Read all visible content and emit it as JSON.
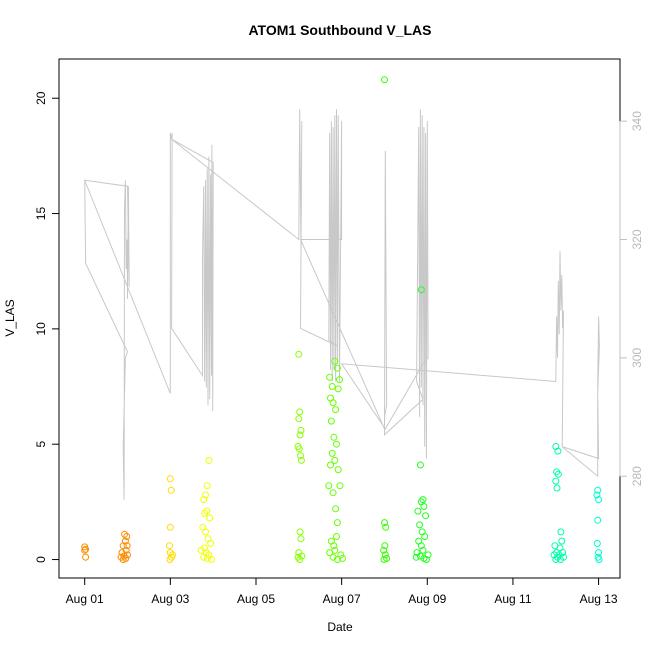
{
  "chart_data": {
    "type": "scatter",
    "title": "ATOM1 Southbound V_LAS",
    "xlabel": "Date",
    "ylabel": "V_LAS",
    "x_unit": "days since Aug 01",
    "xlim": [
      -0.6,
      12.5
    ],
    "ylim": [
      -0.8,
      21.7
    ],
    "x_ticks": [
      {
        "value": 0,
        "label": "Aug 01"
      },
      {
        "value": 2,
        "label": "Aug 03"
      },
      {
        "value": 4,
        "label": "Aug 05"
      },
      {
        "value": 6,
        "label": "Aug 07"
      },
      {
        "value": 8,
        "label": "Aug 09"
      },
      {
        "value": 10,
        "label": "Aug 11"
      },
      {
        "value": 12,
        "label": "Aug 13"
      }
    ],
    "y_ticks": [
      0,
      5,
      10,
      15,
      20
    ],
    "y2": {
      "ylim": [
        262.8,
        350.5
      ],
      "ticks": [
        280,
        300,
        320,
        340
      ],
      "color": "#c0c0c0"
    },
    "points_color_by": "date (orange to green to aqua)",
    "points": [
      {
        "x": 0.0,
        "y": 0.55,
        "c": "#ff8c00"
      },
      {
        "x": 0.0,
        "y": 0.4,
        "c": "#ff8c00"
      },
      {
        "x": 0.02,
        "y": 0.1,
        "c": "#ff8c00"
      },
      {
        "x": 0.02,
        "y": 0.45,
        "c": "#ff8c00"
      },
      {
        "x": 0.85,
        "y": 0.1,
        "c": "#ff8c00"
      },
      {
        "x": 0.87,
        "y": 0.3,
        "c": "#ff8c00"
      },
      {
        "x": 0.9,
        "y": 0.6,
        "c": "#ff8c00"
      },
      {
        "x": 0.92,
        "y": 0.15,
        "c": "#ff8c00"
      },
      {
        "x": 0.93,
        "y": 1.1,
        "c": "#ff8c00"
      },
      {
        "x": 0.95,
        "y": 0.8,
        "c": "#ff8c00"
      },
      {
        "x": 0.97,
        "y": 0.4,
        "c": "#ff8c00"
      },
      {
        "x": 0.98,
        "y": 1.0,
        "c": "#ff8c00"
      },
      {
        "x": 1.0,
        "y": 0.2,
        "c": "#ff8c00"
      },
      {
        "x": 0.96,
        "y": 0.05,
        "c": "#ff8c00"
      },
      {
        "x": 0.9,
        "y": 0.0,
        "c": "#ff8c00"
      },
      {
        "x": 0.99,
        "y": 0.6,
        "c": "#ff8c00"
      },
      {
        "x": 2.0,
        "y": 3.5,
        "c": "#ffdd00"
      },
      {
        "x": 2.02,
        "y": 3.0,
        "c": "#ffdd00"
      },
      {
        "x": 2.0,
        "y": 1.4,
        "c": "#ffdd00"
      },
      {
        "x": 1.98,
        "y": 0.6,
        "c": "#ffdd00"
      },
      {
        "x": 2.0,
        "y": 0.3,
        "c": "#ffdd00"
      },
      {
        "x": 2.03,
        "y": 0.1,
        "c": "#ffdd00"
      },
      {
        "x": 1.99,
        "y": 0.0,
        "c": "#ffdd00"
      },
      {
        "x": 2.05,
        "y": 0.2,
        "c": "#ffdd00"
      },
      {
        "x": 2.78,
        "y": 2.6,
        "c": "#f0ff00"
      },
      {
        "x": 2.82,
        "y": 2.8,
        "c": "#f0ff00"
      },
      {
        "x": 2.86,
        "y": 3.2,
        "c": "#f0ff00"
      },
      {
        "x": 2.9,
        "y": 4.3,
        "c": "#f0ff00"
      },
      {
        "x": 2.8,
        "y": 2.0,
        "c": "#f0ff00"
      },
      {
        "x": 2.85,
        "y": 2.1,
        "c": "#f0ff00"
      },
      {
        "x": 2.92,
        "y": 1.8,
        "c": "#f0ff00"
      },
      {
        "x": 2.76,
        "y": 1.4,
        "c": "#f0ff00"
      },
      {
        "x": 2.82,
        "y": 1.2,
        "c": "#f0ff00"
      },
      {
        "x": 2.88,
        "y": 0.9,
        "c": "#f0ff00"
      },
      {
        "x": 2.94,
        "y": 0.7,
        "c": "#f0ff00"
      },
      {
        "x": 2.8,
        "y": 0.5,
        "c": "#f0ff00"
      },
      {
        "x": 2.84,
        "y": 0.3,
        "c": "#f0ff00"
      },
      {
        "x": 2.9,
        "y": 0.2,
        "c": "#f0ff00"
      },
      {
        "x": 2.78,
        "y": 0.1,
        "c": "#f0ff00"
      },
      {
        "x": 2.86,
        "y": 0.05,
        "c": "#f0ff00"
      },
      {
        "x": 2.96,
        "y": 0.0,
        "c": "#f0ff00"
      },
      {
        "x": 2.72,
        "y": 0.4,
        "c": "#f0ff00"
      },
      {
        "x": 5.0,
        "y": 8.9,
        "c": "#88ff00"
      },
      {
        "x": 5.02,
        "y": 6.4,
        "c": "#88ff00"
      },
      {
        "x": 5.0,
        "y": 6.1,
        "c": "#88ff00"
      },
      {
        "x": 5.05,
        "y": 5.6,
        "c": "#88ff00"
      },
      {
        "x": 5.03,
        "y": 5.4,
        "c": "#88ff00"
      },
      {
        "x": 4.98,
        "y": 4.9,
        "c": "#88ff00"
      },
      {
        "x": 5.01,
        "y": 4.8,
        "c": "#88ff00"
      },
      {
        "x": 5.04,
        "y": 4.5,
        "c": "#88ff00"
      },
      {
        "x": 5.06,
        "y": 4.3,
        "c": "#88ff00"
      },
      {
        "x": 5.03,
        "y": 1.2,
        "c": "#88ff00"
      },
      {
        "x": 5.05,
        "y": 0.9,
        "c": "#88ff00"
      },
      {
        "x": 5.0,
        "y": 0.3,
        "c": "#88ff00"
      },
      {
        "x": 4.98,
        "y": 0.1,
        "c": "#88ff00"
      },
      {
        "x": 5.02,
        "y": 0.0,
        "c": "#88ff00"
      },
      {
        "x": 5.07,
        "y": 0.15,
        "c": "#88ff00"
      },
      {
        "x": 5.72,
        "y": 7.9,
        "c": "#66ff00"
      },
      {
        "x": 5.78,
        "y": 7.5,
        "c": "#66ff00"
      },
      {
        "x": 5.84,
        "y": 8.6,
        "c": "#66ff00"
      },
      {
        "x": 5.9,
        "y": 8.3,
        "c": "#66ff00"
      },
      {
        "x": 5.95,
        "y": 7.8,
        "c": "#66ff00"
      },
      {
        "x": 5.74,
        "y": 7.0,
        "c": "#66ff00"
      },
      {
        "x": 5.8,
        "y": 6.8,
        "c": "#66ff00"
      },
      {
        "x": 5.86,
        "y": 6.5,
        "c": "#66ff00"
      },
      {
        "x": 5.92,
        "y": 7.4,
        "c": "#66ff00"
      },
      {
        "x": 5.76,
        "y": 6.0,
        "c": "#66ff00"
      },
      {
        "x": 5.82,
        "y": 5.3,
        "c": "#66ff00"
      },
      {
        "x": 5.88,
        "y": 5.0,
        "c": "#66ff00"
      },
      {
        "x": 5.78,
        "y": 4.6,
        "c": "#66ff00"
      },
      {
        "x": 5.84,
        "y": 4.3,
        "c": "#66ff00"
      },
      {
        "x": 5.92,
        "y": 3.9,
        "c": "#66ff00"
      },
      {
        "x": 5.74,
        "y": 4.1,
        "c": "#66ff00"
      },
      {
        "x": 5.7,
        "y": 3.2,
        "c": "#66ff00"
      },
      {
        "x": 5.8,
        "y": 2.9,
        "c": "#66ff00"
      },
      {
        "x": 5.96,
        "y": 3.2,
        "c": "#66ff00"
      },
      {
        "x": 5.86,
        "y": 2.2,
        "c": "#66ff00"
      },
      {
        "x": 5.9,
        "y": 1.6,
        "c": "#66ff00"
      },
      {
        "x": 5.76,
        "y": 0.8,
        "c": "#66ff00"
      },
      {
        "x": 5.82,
        "y": 0.6,
        "c": "#66ff00"
      },
      {
        "x": 5.88,
        "y": 1.0,
        "c": "#66ff00"
      },
      {
        "x": 5.72,
        "y": 0.3,
        "c": "#66ff00"
      },
      {
        "x": 5.8,
        "y": 0.1,
        "c": "#66ff00"
      },
      {
        "x": 5.9,
        "y": 0.0,
        "c": "#66ff00"
      },
      {
        "x": 5.98,
        "y": 0.2,
        "c": "#66ff00"
      },
      {
        "x": 6.02,
        "y": 0.05,
        "c": "#66ff00"
      },
      {
        "x": 5.84,
        "y": 0.4,
        "c": "#66ff00"
      },
      {
        "x": 7.0,
        "y": 20.8,
        "c": "#33ff00"
      },
      {
        "x": 7.0,
        "y": 1.6,
        "c": "#33ff00"
      },
      {
        "x": 7.03,
        "y": 1.4,
        "c": "#33ff00"
      },
      {
        "x": 7.01,
        "y": 0.6,
        "c": "#33ff00"
      },
      {
        "x": 6.98,
        "y": 0.4,
        "c": "#33ff00"
      },
      {
        "x": 7.02,
        "y": 0.2,
        "c": "#33ff00"
      },
      {
        "x": 7.05,
        "y": 0.05,
        "c": "#33ff00"
      },
      {
        "x": 6.99,
        "y": 0.0,
        "c": "#33ff00"
      },
      {
        "x": 7.86,
        "y": 11.7,
        "c": "#22ff22"
      },
      {
        "x": 7.84,
        "y": 4.1,
        "c": "#22ff22"
      },
      {
        "x": 7.9,
        "y": 2.6,
        "c": "#22ff22"
      },
      {
        "x": 7.86,
        "y": 2.5,
        "c": "#22ff22"
      },
      {
        "x": 7.92,
        "y": 2.3,
        "c": "#22ff22"
      },
      {
        "x": 7.78,
        "y": 2.1,
        "c": "#22ff22"
      },
      {
        "x": 7.96,
        "y": 1.9,
        "c": "#22ff22"
      },
      {
        "x": 7.82,
        "y": 1.5,
        "c": "#22ff22"
      },
      {
        "x": 7.88,
        "y": 1.2,
        "c": "#22ff22"
      },
      {
        "x": 7.94,
        "y": 1.0,
        "c": "#22ff22"
      },
      {
        "x": 7.8,
        "y": 0.8,
        "c": "#22ff22"
      },
      {
        "x": 7.86,
        "y": 0.6,
        "c": "#22ff22"
      },
      {
        "x": 7.9,
        "y": 0.4,
        "c": "#22ff22"
      },
      {
        "x": 7.76,
        "y": 0.3,
        "c": "#22ff22"
      },
      {
        "x": 7.84,
        "y": 0.15,
        "c": "#22ff22"
      },
      {
        "x": 7.92,
        "y": 0.05,
        "c": "#22ff22"
      },
      {
        "x": 7.98,
        "y": 0.0,
        "c": "#22ff22"
      },
      {
        "x": 7.74,
        "y": 0.1,
        "c": "#22ff22"
      },
      {
        "x": 8.02,
        "y": 0.2,
        "c": "#22ff22"
      },
      {
        "x": 11.0,
        "y": 4.9,
        "c": "#00ffaa"
      },
      {
        "x": 11.05,
        "y": 4.7,
        "c": "#00ffaa"
      },
      {
        "x": 11.02,
        "y": 3.8,
        "c": "#00ffaa"
      },
      {
        "x": 11.0,
        "y": 3.4,
        "c": "#00ffaa"
      },
      {
        "x": 11.03,
        "y": 3.1,
        "c": "#00ffaa"
      },
      {
        "x": 11.06,
        "y": 3.7,
        "c": "#00ffaa"
      },
      {
        "x": 10.98,
        "y": 0.6,
        "c": "#00ffaa"
      },
      {
        "x": 11.02,
        "y": 0.3,
        "c": "#00ffaa"
      },
      {
        "x": 11.04,
        "y": 0.1,
        "c": "#00ffaa"
      },
      {
        "x": 11.0,
        "y": 0.0,
        "c": "#00ffaa"
      },
      {
        "x": 10.96,
        "y": 0.2,
        "c": "#00ffaa"
      },
      {
        "x": 11.12,
        "y": 1.2,
        "c": "#00ffaa"
      },
      {
        "x": 11.14,
        "y": 0.8,
        "c": "#00ffaa"
      },
      {
        "x": 11.1,
        "y": 0.5,
        "c": "#00ffaa"
      },
      {
        "x": 11.16,
        "y": 0.3,
        "c": "#00ffaa"
      },
      {
        "x": 11.18,
        "y": 0.1,
        "c": "#00ffaa"
      },
      {
        "x": 11.11,
        "y": 0.0,
        "c": "#00ffaa"
      },
      {
        "x": 11.08,
        "y": 0.2,
        "c": "#00ffaa"
      },
      {
        "x": 11.98,
        "y": 3.0,
        "c": "#00ffcc"
      },
      {
        "x": 11.96,
        "y": 2.8,
        "c": "#00ffcc"
      },
      {
        "x": 12.0,
        "y": 2.6,
        "c": "#00ffcc"
      },
      {
        "x": 11.98,
        "y": 1.7,
        "c": "#00ffcc"
      },
      {
        "x": 11.97,
        "y": 0.7,
        "c": "#00ffcc"
      },
      {
        "x": 12.0,
        "y": 0.3,
        "c": "#00ffcc"
      },
      {
        "x": 11.99,
        "y": 0.1,
        "c": "#00ffcc"
      },
      {
        "x": 12.01,
        "y": 0.0,
        "c": "#00ffcc"
      }
    ],
    "line": {
      "name": "secondary axis series",
      "color": "#c8c8c8",
      "points": [
        [
          0.0,
          330
        ],
        [
          0.02,
          316
        ],
        [
          1.0,
          301
        ],
        [
          0.95,
          300
        ],
        [
          0.9,
          285
        ],
        [
          0.92,
          276
        ],
        [
          0.93,
          325
        ],
        [
          0.95,
          330
        ],
        [
          0.97,
          315
        ],
        [
          0.99,
          320
        ],
        [
          1.0,
          310
        ],
        [
          1.02,
          329
        ],
        [
          1.04,
          312
        ],
        [
          1.0,
          329
        ],
        [
          0.0,
          330
        ],
        [
          2.0,
          294
        ],
        [
          2.0,
          338
        ],
        [
          2.02,
          337
        ],
        [
          2.04,
          338
        ],
        [
          2.03,
          305
        ],
        [
          2.75,
          297
        ],
        [
          2.75,
          317
        ],
        [
          2.78,
          329
        ],
        [
          2.8,
          296
        ],
        [
          2.82,
          330
        ],
        [
          2.84,
          295
        ],
        [
          2.86,
          332
        ],
        [
          2.88,
          292
        ],
        [
          2.9,
          334
        ],
        [
          2.92,
          293
        ],
        [
          2.94,
          331
        ],
        [
          2.96,
          297
        ],
        [
          2.97,
          336
        ],
        [
          2.99,
          291
        ],
        [
          3.0,
          333
        ],
        [
          3.0,
          333
        ],
        [
          2.02,
          337
        ],
        [
          5.0,
          320
        ],
        [
          5.02,
          342
        ],
        [
          5.05,
          318
        ],
        [
          5.07,
          340
        ],
        [
          5.04,
          305
        ],
        [
          5.9,
          302
        ],
        [
          5.7,
          303
        ],
        [
          5.72,
          338
        ],
        [
          5.74,
          298
        ],
        [
          5.76,
          340
        ],
        [
          5.78,
          296
        ],
        [
          5.8,
          339
        ],
        [
          5.82,
          298
        ],
        [
          5.84,
          341
        ],
        [
          5.86,
          296
        ],
        [
          5.88,
          342
        ],
        [
          5.9,
          299
        ],
        [
          5.92,
          341
        ],
        [
          5.95,
          296
        ],
        [
          6.0,
          340
        ],
        [
          6.0,
          320
        ],
        [
          5.04,
          320
        ],
        [
          7.0,
          288
        ],
        [
          7.02,
          335
        ],
        [
          7.05,
          292
        ],
        [
          7.0,
          290
        ],
        [
          7.0,
          287
        ],
        [
          7.9,
          293
        ],
        [
          7.75,
          296
        ],
        [
          7.8,
          339
        ],
        [
          7.82,
          290
        ],
        [
          7.84,
          342
        ],
        [
          7.86,
          295
        ],
        [
          7.88,
          341
        ],
        [
          7.9,
          292
        ],
        [
          7.92,
          339
        ],
        [
          7.94,
          285
        ],
        [
          7.96,
          338
        ],
        [
          7.98,
          283
        ],
        [
          8.0,
          340
        ],
        [
          8.02,
          300
        ],
        [
          7.9,
          299
        ],
        [
          7.02,
          288
        ],
        [
          6.0,
          299
        ],
        [
          11.0,
          296
        ],
        [
          11.0,
          296
        ],
        [
          11.02,
          307
        ],
        [
          11.04,
          300
        ],
        [
          11.06,
          313
        ],
        [
          11.08,
          304
        ],
        [
          11.1,
          318
        ],
        [
          11.12,
          308
        ],
        [
          11.14,
          314
        ],
        [
          11.16,
          305
        ],
        [
          11.18,
          308
        ],
        [
          11.15,
          285
        ],
        [
          11.15,
          285
        ],
        [
          11.98,
          280
        ],
        [
          11.98,
          295
        ],
        [
          12.0,
          307
        ],
        [
          12.02,
          302
        ],
        [
          11.98,
          294
        ],
        [
          12.0,
          283
        ],
        [
          11.15,
          285
        ]
      ]
    }
  }
}
